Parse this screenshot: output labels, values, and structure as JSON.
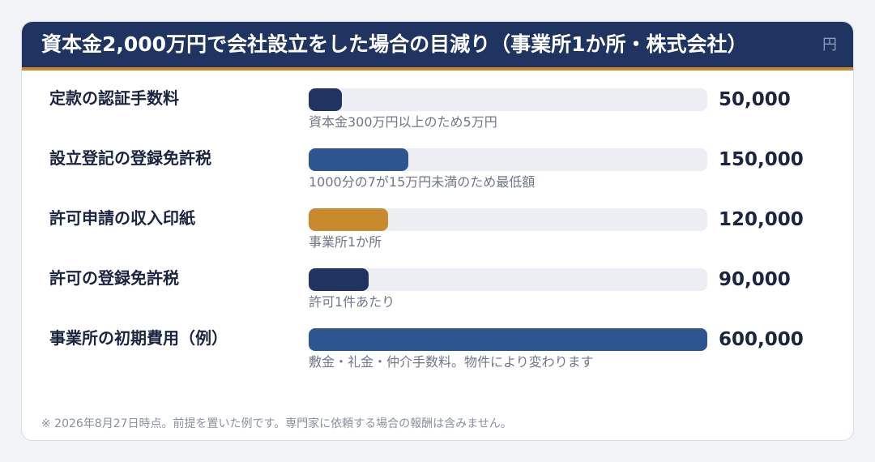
{
  "chart": {
    "title": "資本金2,000万円で会社設立をした場合の目減り（事業所1か所・株式会社）",
    "unit": "円",
    "footnote": "※ 2026年8月27日時点。前提を置いた例です。専門家に依頼する場合の報酬は含みません。"
  },
  "colors": {
    "header_bg": "#1f3461",
    "header_accent": "#c98a2e",
    "bar_dark_navy": "#1f3461",
    "bar_mid_blue": "#2d5590",
    "bar_gold": "#c98a2e",
    "track": "#eceef3"
  },
  "chart_data": {
    "type": "bar",
    "orientation": "horizontal",
    "title": "資本金2,000万円で会社設立をした場合の目減り（事業所1か所・株式会社）",
    "unit": "円",
    "xlim": [
      0,
      600000
    ],
    "categories": [
      "定款の認証手数料",
      "設立登記の登録免許税",
      "許可申請の収入印紙",
      "許可の登録免許税",
      "事業所の初期費用（例）"
    ],
    "values": [
      50000,
      150000,
      120000,
      90000,
      600000
    ],
    "value_labels": [
      "50,000",
      "150,000",
      "120,000",
      "90,000",
      "600,000"
    ],
    "notes": [
      "資本金300万円以上のため5万円",
      "1000分の7が15万円未満のため最低額",
      "事業所1か所",
      "許可1件あたり",
      "敷金・礼金・仲介手数料。物件により変わります"
    ],
    "bar_colors": [
      "#1f3461",
      "#2d5590",
      "#c98a2e",
      "#1f3461",
      "#2d5590"
    ],
    "grid": false,
    "legend": "none"
  }
}
